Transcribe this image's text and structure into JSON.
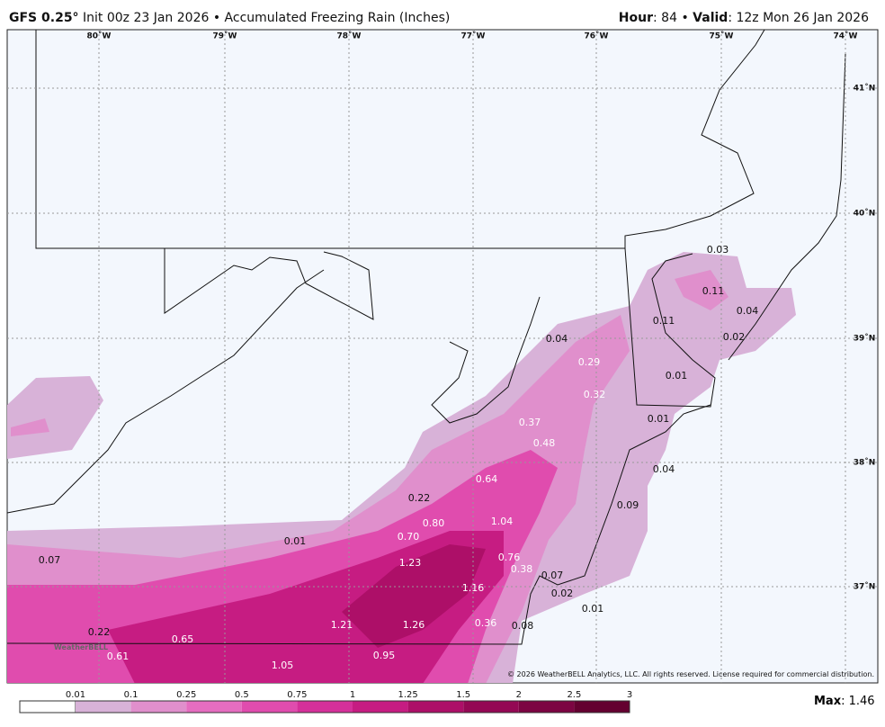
{
  "header": {
    "model": "GFS 0.25°",
    "subtitle": "Init 00z 23 Jan 2026 • Accumulated Freezing Rain (Inches)",
    "hour_label": "Hour",
    "hour": ": 84 •",
    "valid_label": "Valid",
    "valid": ": 12z Mon 26 Jan 2026"
  },
  "map": {
    "longitudes": [
      "80˚W",
      "79˚W",
      "78˚W",
      "77˚W",
      "76˚W",
      "75˚W",
      "74˚W"
    ],
    "latitudes": [
      "41˚N",
      "40˚N",
      "39˚N",
      "38˚N",
      "37˚N"
    ],
    "labels": [
      "0.03",
      "0.11",
      "0.04",
      "0.11",
      "0.02",
      "0.04",
      "0.29",
      "0.01",
      "0.32",
      "0.37",
      "0.01",
      "0.48",
      "0.04",
      "0.64",
      "0.22",
      "0.09",
      "0.80",
      "1.04",
      "0.01",
      "0.70",
      "0.07",
      "1.23",
      "0.76",
      "0.38",
      "0.07",
      "1.16",
      "0.02",
      "0.01",
      "1.21",
      "1.26",
      "0.36",
      "0.08",
      "0.22",
      "0.65",
      "0.61",
      "0.95",
      "1.05"
    ],
    "copyright": "© 2026 WeatherBELL Analytics, LLC. All rights reserved. License required for commercial distribution.",
    "logo": "WeatherBELL"
  },
  "legend": {
    "labels": [
      "0.01",
      "0.1",
      "0.25",
      "0.5",
      "0.75",
      "1",
      "1.25",
      "1.5",
      "2",
      "2.5",
      "3"
    ],
    "colors": [
      "#d8b2d8",
      "#e08fcc",
      "#e56dc0",
      "#e04cae",
      "#d5309a",
      "#c61c82",
      "#ad0f68",
      "#940854",
      "#7c0442",
      "#640030"
    ],
    "max_label": "Max",
    "max": ": 1.46"
  }
}
